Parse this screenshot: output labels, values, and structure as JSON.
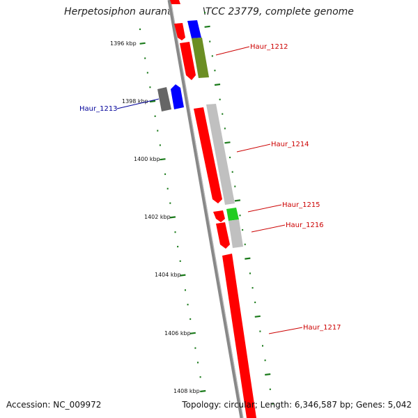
{
  "title": "Herpetosiphon aurantiacus ATCC 23779, complete genome",
  "footer": {
    "accession": "Accession: NC_009972",
    "topology": "Topology: circular; Length: 6,346,587 bp; Genes: 5,042"
  },
  "colors": {
    "backbone": "#888888",
    "ruler_ticks": "#1a7a1a",
    "label_forward": "#cc0000",
    "label_reverse": "#000099",
    "gene_red": "#ff0000",
    "gene_blue": "#0000ff",
    "gene_olive": "#6b8e23",
    "gene_grey": "#c0c0c0",
    "gene_dark": "#666666",
    "gene_green": "#22cc22"
  },
  "ruler": {
    "unit": "kbp",
    "labels": [
      "1396 kbp",
      "1398 kbp",
      "1400 kbp",
      "1402 kbp",
      "1404 kbp",
      "1406 kbp",
      "1408 kbp"
    ]
  },
  "gene_labels": [
    {
      "name": "Haur_1212",
      "color": "#cc0000"
    },
    {
      "name": "Haur_1213",
      "color": "#000099"
    },
    {
      "name": "Haur_1214",
      "color": "#cc0000"
    },
    {
      "name": "Haur_1215",
      "color": "#cc0000"
    },
    {
      "name": "Haur_1216",
      "color": "#cc0000"
    },
    {
      "name": "Haur_1217",
      "color": "#cc0000"
    }
  ]
}
